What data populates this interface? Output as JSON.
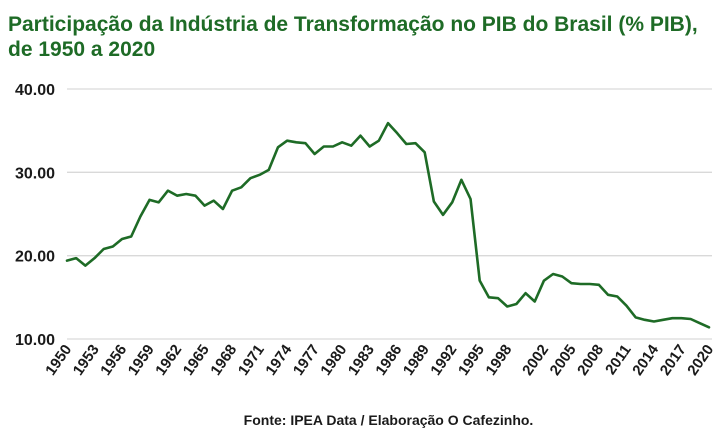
{
  "chart_data": {
    "type": "line",
    "title": "Participação da Indústria de Transformação no PIB do Brasil (% PIB), de 1950 a 2020",
    "xlabel": "",
    "ylabel": "",
    "ylim": [
      10,
      40
    ],
    "xlim": [
      1950,
      2020
    ],
    "grid": "horizontal",
    "legend": "none",
    "yticks": [
      "10.00",
      "20.00",
      "30.00",
      "40.00"
    ],
    "xticks": [
      "1950",
      "1953",
      "1956",
      "1959",
      "1962",
      "1965",
      "1968",
      "1971",
      "1974",
      "1977",
      "1980",
      "1983",
      "1986",
      "1989",
      "1992",
      "1995",
      "1998",
      "2002",
      "2005",
      "2008",
      "2011",
      "2014",
      "2017",
      "2020"
    ],
    "series": [
      {
        "color": "#1e6b26",
        "x": [
          1950,
          1951,
          1952,
          1953,
          1954,
          1955,
          1956,
          1957,
          1958,
          1959,
          1960,
          1961,
          1962,
          1963,
          1964,
          1965,
          1966,
          1967,
          1968,
          1969,
          1970,
          1971,
          1972,
          1973,
          1974,
          1975,
          1976,
          1977,
          1978,
          1979,
          1980,
          1981,
          1982,
          1983,
          1984,
          1985,
          1986,
          1987,
          1988,
          1989,
          1990,
          1991,
          1992,
          1993,
          1994,
          1995,
          1996,
          1997,
          1998,
          1999,
          2000,
          2001,
          2002,
          2003,
          2004,
          2005,
          2006,
          2007,
          2008,
          2009,
          2010,
          2011,
          2012,
          2013,
          2014,
          2015,
          2016,
          2017,
          2018,
          2019,
          2020
        ],
        "values": [
          19.4,
          19.7,
          18.8,
          19.7,
          20.8,
          21.1,
          22.0,
          22.3,
          24.7,
          26.7,
          26.4,
          27.8,
          27.2,
          27.4,
          27.2,
          26.0,
          26.6,
          25.6,
          27.8,
          28.2,
          29.3,
          29.7,
          30.3,
          33.0,
          33.8,
          33.6,
          33.5,
          32.2,
          33.1,
          33.1,
          33.6,
          33.2,
          34.4,
          33.1,
          33.8,
          35.9,
          34.7,
          33.4,
          33.5,
          32.4,
          26.5,
          24.9,
          26.4,
          29.1,
          26.8,
          17.0,
          15.0,
          14.9,
          13.9,
          14.2,
          15.5,
          14.5,
          17.0,
          17.8,
          17.5,
          16.7,
          16.6,
          16.6,
          16.5,
          15.3,
          15.1,
          14.0,
          12.6,
          12.3,
          12.1,
          12.3,
          12.5,
          12.5,
          12.4,
          11.9,
          11.4
        ]
      }
    ]
  },
  "footer": {
    "source": "Fonte: IPEA Data / Elaboração O Cafezinho."
  }
}
